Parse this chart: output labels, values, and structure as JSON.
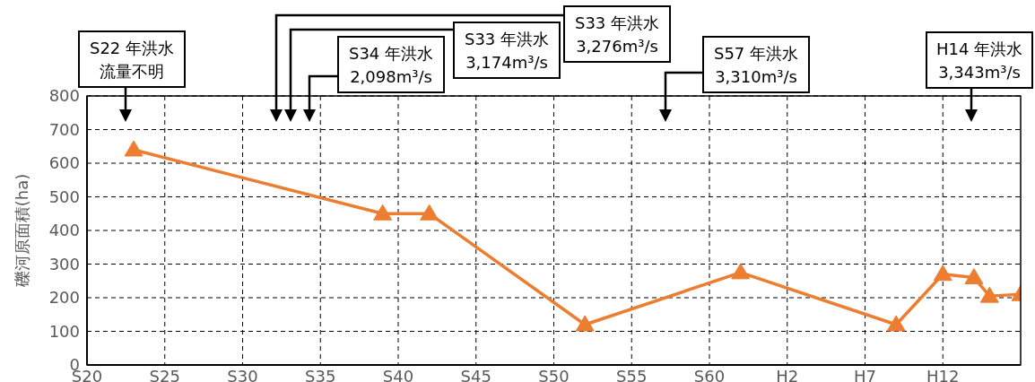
{
  "chart_data": {
    "type": "line",
    "ylabel": "礫河原面積(ha)",
    "categories": [
      "S20",
      null,
      null,
      null,
      null,
      "S25",
      null,
      null,
      null,
      null,
      "S30",
      null,
      null,
      null,
      null,
      "S35",
      null,
      null,
      null,
      null,
      "S40",
      null,
      null,
      null,
      null,
      "S45",
      null,
      null,
      null,
      null,
      "S50",
      null,
      null,
      null,
      null,
      "S55",
      null,
      null,
      null,
      null,
      "S60",
      null,
      null,
      null,
      null,
      "H2",
      null,
      null,
      null,
      null,
      "H7",
      null,
      null,
      null,
      null,
      "H12",
      null,
      null,
      null,
      null,
      null
    ],
    "series": [
      {
        "color": "#ed7d31",
        "values": [
          null,
          null,
          null,
          640,
          null,
          null,
          null,
          null,
          null,
          null,
          null,
          null,
          null,
          null,
          null,
          null,
          null,
          null,
          null,
          450,
          null,
          null,
          450,
          null,
          null,
          null,
          null,
          null,
          null,
          null,
          null,
          null,
          120,
          null,
          null,
          null,
          null,
          null,
          null,
          null,
          null,
          null,
          275,
          null,
          null,
          null,
          null,
          null,
          null,
          null,
          null,
          null,
          120,
          null,
          null,
          270,
          null,
          260,
          205,
          null,
          210
        ]
      }
    ],
    "ylim": [
      0,
      800
    ],
    "yticks": [
      0,
      100,
      200,
      300,
      400,
      500,
      600,
      700,
      800
    ],
    "grid": true,
    "marker": "triangle",
    "line_style": "solid",
    "annotations": [
      "S22 年洪水",
      "流量不明",
      "S34 年洪水",
      "2,098m³/s",
      "S33 年洪水",
      "3,174m³/s",
      "S33 年洪水",
      "3,276m³/s",
      "S57 年洪水",
      "3,310m³/s",
      "H14 年洪水",
      "3,343m³/s"
    ]
  }
}
